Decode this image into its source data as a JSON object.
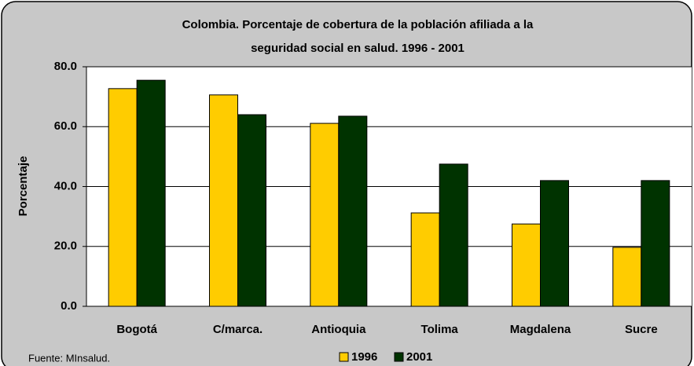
{
  "chart_data": {
    "type": "bar",
    "title": [
      "Colombia. Porcentaje de cobertura de la población afiliada a la",
      "seguridad social en salud. 1996 - 2001"
    ],
    "ylabel": "Porcentaje",
    "source": "Fuente: MInsalud.",
    "categories": [
      "Bogotá",
      "C/marca.",
      "Antioquia",
      "Tolima",
      "Magdalena",
      "Sucre"
    ],
    "series": [
      {
        "name": "1996",
        "color": "#ffcc00",
        "values": [
          72.7,
          70.6,
          61.1,
          31.2,
          27.5,
          19.7
        ]
      },
      {
        "name": "2001",
        "color": "#003300",
        "values": [
          75.5,
          64.0,
          63.5,
          47.5,
          42.0,
          42.0
        ]
      }
    ],
    "ylim": [
      0,
      80
    ],
    "yticks": [
      {
        "value": 0,
        "label": "0.0"
      },
      {
        "value": 20,
        "label": "20.0"
      },
      {
        "value": 40,
        "label": "40.0"
      },
      {
        "value": 60,
        "label": "60.0"
      },
      {
        "value": 80,
        "label": "80.0"
      }
    ],
    "grid": true,
    "legend": "bottom"
  }
}
